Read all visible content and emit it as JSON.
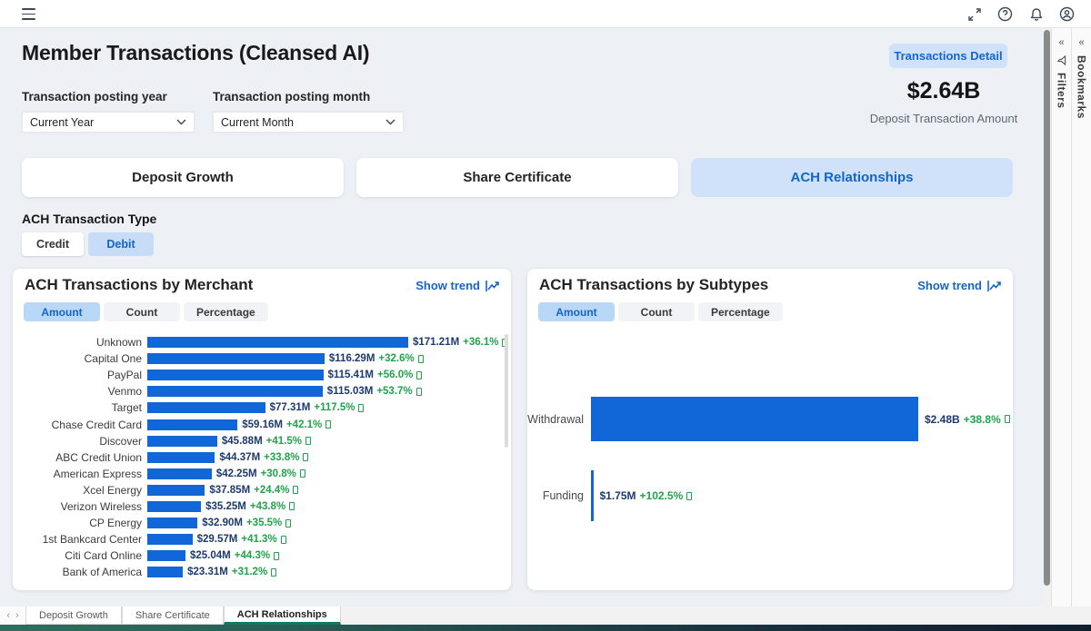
{
  "header": {
    "title": "Member Transactions (Cleansed AI)",
    "detail_button": "Transactions Detail"
  },
  "slicers": {
    "year_label": "Transaction posting year",
    "year_value": "Current Year",
    "month_label": "Transaction posting month",
    "month_value": "Current Month"
  },
  "kpi": {
    "value": "$2.64B",
    "label": "Deposit Transaction Amount"
  },
  "nav_buttons": {
    "deposit": "Deposit Growth",
    "share": "Share Certificate",
    "ach": "ACH Relationships"
  },
  "ach_type": {
    "label": "ACH Transaction Type",
    "credit": "Credit",
    "debit": "Debit"
  },
  "cards": {
    "merchant": {
      "title": "ACH Transactions by Merchant",
      "show_trend": "Show trend",
      "pills": [
        "Amount",
        "Count",
        "Percentage"
      ]
    },
    "subtypes": {
      "title": "ACH Transactions by Subtypes",
      "show_trend": "Show trend",
      "pills": [
        "Amount",
        "Count",
        "Percentage"
      ]
    }
  },
  "side_panels": {
    "filters": "Filters",
    "bookmarks": "Bookmarks",
    "collapse_glyph": "«"
  },
  "bottom_tabs": {
    "prev_glyph": "‹",
    "next_glyph": "›",
    "tabs": [
      "Deposit Growth",
      "Share Certificate",
      "ACH Relationships"
    ],
    "active": "ACH Relationships"
  },
  "icons": {
    "menu": "hamburger-menu",
    "fullscreen": "expand-arrows",
    "help": "question-circle",
    "notifications": "bell",
    "account": "person-circle",
    "trend": "line-chart-arrow",
    "filter": "funnel",
    "dropdown": "chevron-down"
  },
  "colors": {
    "bar_blue": "#1267d8",
    "accent_blue": "#1465c8",
    "selected_light_blue": "#cfe2fa",
    "positive_green": "#1fa34b",
    "value_navy": "#1d3a6d",
    "active_tab_underline": "#0e7c64"
  },
  "chart_data": [
    {
      "type": "bar",
      "orientation": "horizontal",
      "title": "ACH Transactions by Merchant",
      "selected_measure": "Amount",
      "value_unit": "USD millions",
      "categories": [
        "Unknown",
        "Capital One",
        "PayPal",
        "Venmo",
        "Target",
        "Chase Credit Card",
        "Discover",
        "ABC Credit Union",
        "American Express",
        "Xcel Energy",
        "Verizon Wireless",
        "CP Energy",
        "1st Bankcard Center",
        "Citi Card Online",
        "Bank of America"
      ],
      "values_millions": [
        171.21,
        116.29,
        115.41,
        115.03,
        77.31,
        59.16,
        45.88,
        44.37,
        42.25,
        37.85,
        35.25,
        32.9,
        29.57,
        25.04,
        23.31
      ],
      "value_labels": [
        "$171.21M",
        "$116.29M",
        "$115.41M",
        "$115.03M",
        "$77.31M",
        "$59.16M",
        "$45.88M",
        "$44.37M",
        "$42.25M",
        "$37.85M",
        "$35.25M",
        "$32.90M",
        "$29.57M",
        "$25.04M",
        "$23.31M"
      ],
      "change_labels": [
        "+36.1%",
        "+32.6%",
        "+56.0%",
        "+53.7%",
        "+117.5%",
        "+42.1%",
        "+41.5%",
        "+33.8%",
        "+30.8%",
        "+24.4%",
        "+43.8%",
        "+35.5%",
        "+41.3%",
        "+44.3%",
        "+31.2%"
      ],
      "bar_color": "#1267d8",
      "grid": false,
      "legend": "none"
    },
    {
      "type": "bar",
      "orientation": "horizontal",
      "title": "ACH Transactions by Subtypes",
      "selected_measure": "Amount",
      "value_unit": "USD millions",
      "categories": [
        "Withdrawal",
        "Funding"
      ],
      "values_millions": [
        2480,
        1.75
      ],
      "value_labels": [
        "$2.48B",
        "$1.75M"
      ],
      "change_labels": [
        "+38.8%",
        "+102.5%"
      ],
      "bar_color": "#1267d8",
      "grid": false,
      "legend": "none"
    }
  ]
}
